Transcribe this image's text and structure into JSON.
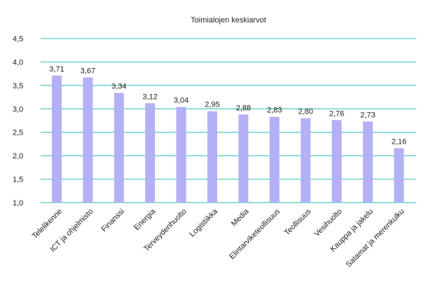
{
  "chart_data": {
    "type": "bar",
    "title": "Toimialojen keskiarvot",
    "xlabel": "",
    "ylabel": "",
    "ylim": [
      1.0,
      4.5
    ],
    "y_ticks": [
      "1,0",
      "1,5",
      "2,0",
      "2,5",
      "3,0",
      "3,5",
      "4,0",
      "4,5"
    ],
    "y_tick_values": [
      1.0,
      1.5,
      2.0,
      2.5,
      3.0,
      3.5,
      4.0,
      4.5
    ],
    "grid": true,
    "bar_color": "#b3b0f5",
    "grid_color": "#4fc9c0",
    "categories": [
      "Telelikenne",
      "ICT ja ohjelmisto",
      "Finanssi",
      "Energia",
      "Terveydenhuolto",
      "Logistiikka",
      "Media",
      "Elintarviketeollisuus",
      "Teollisuus",
      "Vesihuolto",
      "Kauppa ja jakelu",
      "Satamat ja merenkulku"
    ],
    "values": [
      3.71,
      3.67,
      3.34,
      3.12,
      3.04,
      2.95,
      2.88,
      2.83,
      2.8,
      2.76,
      2.73,
      2.16
    ],
    "data_labels": [
      "3,71",
      "3,67",
      "3,34",
      "3,12",
      "3,04",
      "2,95",
      "2,88",
      "2,83",
      "2,80",
      "2,76",
      "2,73",
      "2,16"
    ]
  }
}
